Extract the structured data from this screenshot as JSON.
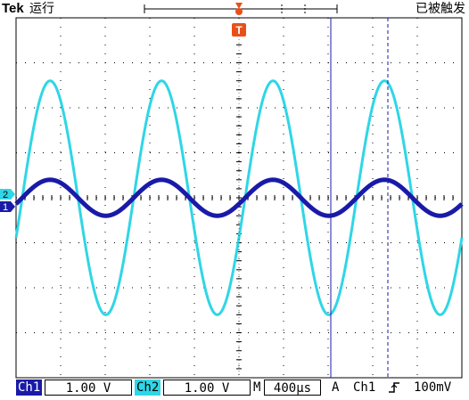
{
  "header": {
    "brand": "Tek",
    "run_state": "运行",
    "trigger_state": "已被触发",
    "trigger_marker": "T"
  },
  "channels": [
    {
      "id": "ch1",
      "label": "Ch1",
      "marker": "1",
      "scale": "1.00 V",
      "color": "#1a1aa8"
    },
    {
      "id": "ch2",
      "label": "Ch2",
      "marker": "2",
      "scale": "1.00 V",
      "color": "#2fd6e6"
    }
  ],
  "timebase": {
    "label": "M",
    "value": "400µs"
  },
  "trigger": {
    "mode": "A",
    "source": "Ch1",
    "slope_icon": "rising-edge-icon",
    "level": "100mV"
  },
  "chart_data": {
    "type": "line",
    "x_unit": "µs",
    "y_unit": "div",
    "xlim": [
      0,
      4000
    ],
    "ylim": [
      -4,
      4
    ],
    "grid": true,
    "grid_divisions": {
      "x": 10,
      "y": 8
    },
    "series": [
      {
        "name": "",
        "channel": "Ch2",
        "color": "#2fd6e6",
        "amplitude_div": 2.6,
        "offset_div": 0.0,
        "period_us": 1000,
        "phase_deg": -20
      },
      {
        "name": "",
        "channel": "Ch1",
        "color": "#1a1aa8",
        "amplitude_div": 0.4,
        "offset_div": 0.0,
        "period_us": 1000,
        "phase_deg": -20
      }
    ]
  }
}
